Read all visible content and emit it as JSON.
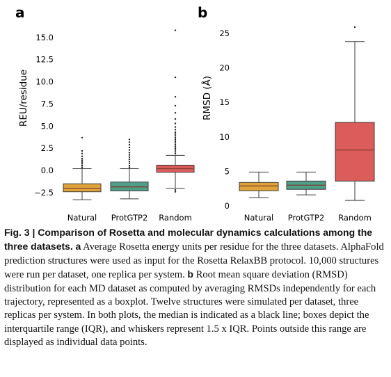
{
  "colors": {
    "Natural": "#e0a33a",
    "ProtGTP2": "#4e9e88",
    "Random": "#dc5c5c",
    "median": "#7f3f2f",
    "line": "#3a3a3a"
  },
  "chart_data": [
    {
      "type": "box",
      "panel": "a",
      "ylabel": "REU/residue",
      "xlabel": "",
      "ylim": [
        -3.6,
        16.0
      ],
      "yticks": [
        -2.5,
        0.0,
        2.5,
        5.0,
        7.5,
        10.0,
        12.5,
        15.0
      ],
      "ytick_labels": [
        "−2.5",
        "0.0",
        "2.5",
        "5.0",
        "7.5",
        "10.0",
        "12.5",
        "15.0"
      ],
      "categories": [
        "Natural",
        "ProtGTP2",
        "Random"
      ],
      "boxes": [
        {
          "q1": -2.4,
          "median": -2.0,
          "q3": -1.5,
          "whisker_low": -3.3,
          "whisker_high": 0.2,
          "outliers": [
            0.35,
            0.55,
            0.75,
            0.95,
            1.15,
            1.35,
            1.6,
            1.9,
            2.2,
            3.7
          ]
        },
        {
          "q1": -2.3,
          "median": -1.85,
          "q3": -1.3,
          "whisker_low": -3.2,
          "whisker_high": 0.2,
          "outliers": [
            0.35,
            0.55,
            0.8,
            1.0,
            1.25,
            1.5,
            1.75,
            2.0,
            2.3,
            2.6,
            2.9,
            3.2,
            3.5
          ]
        },
        {
          "q1": -0.2,
          "median": 0.2,
          "q3": 0.6,
          "whisker_low": -2.0,
          "whisker_high": 1.7,
          "outliers": [
            1.9,
            2.1,
            2.3,
            2.5,
            2.7,
            2.9,
            3.1,
            3.3,
            3.5,
            3.7,
            3.9,
            4.1,
            4.3,
            4.6,
            4.9,
            5.3,
            5.8,
            6.5,
            7.3,
            8.3,
            10.5,
            15.8,
            -2.2,
            -2.4
          ]
        }
      ]
    },
    {
      "type": "box",
      "panel": "b",
      "ylabel": "RMSD (Å)",
      "xlabel": "",
      "ylim": [
        -0.6,
        26.5
      ],
      "yticks": [
        0,
        5,
        10,
        15,
        20,
        25
      ],
      "ytick_labels": [
        "0",
        "5",
        "10",
        "15",
        "20",
        "25"
      ],
      "categories": [
        "Natural",
        "ProtGTP2",
        "Random"
      ],
      "boxes": [
        {
          "q1": 2.2,
          "median": 2.9,
          "q3": 3.4,
          "whisker_low": 1.2,
          "whisker_high": 4.9,
          "outliers": []
        },
        {
          "q1": 2.4,
          "median": 3.0,
          "q3": 3.6,
          "whisker_low": 1.6,
          "whisker_high": 4.9,
          "outliers": []
        },
        {
          "q1": 3.6,
          "median": 8.1,
          "q3": 12.1,
          "whisker_low": 0.8,
          "whisker_high": 23.8,
          "outliers": [
            25.9
          ]
        }
      ]
    }
  ],
  "caption": {
    "bold_lead": "Fig. 3 | Comparison of Rosetta and molecular dynamics calculations among the three datasets.",
    "a_letter": "a",
    "a_text": "Average Rosetta energy units per residue for the three datasets. AlphaFold prediction structures were used as input for the Rosetta RelaxBB protocol. 10,000 structures were run per dataset, one replica per system.",
    "b_letter": "b",
    "b_text": "Root mean square deviation (RMSD) distribution for each MD dataset as computed by averaging RMSDs independently for each trajectory, represented as a boxplot. Twelve structures were simulated per dataset, three replicas per system. In both plots, the median is indicated as a black line; boxes depict the interquartile range (IQR), and whiskers represent 1.5 x IQR. Points outside this range are displayed as individual data points."
  }
}
